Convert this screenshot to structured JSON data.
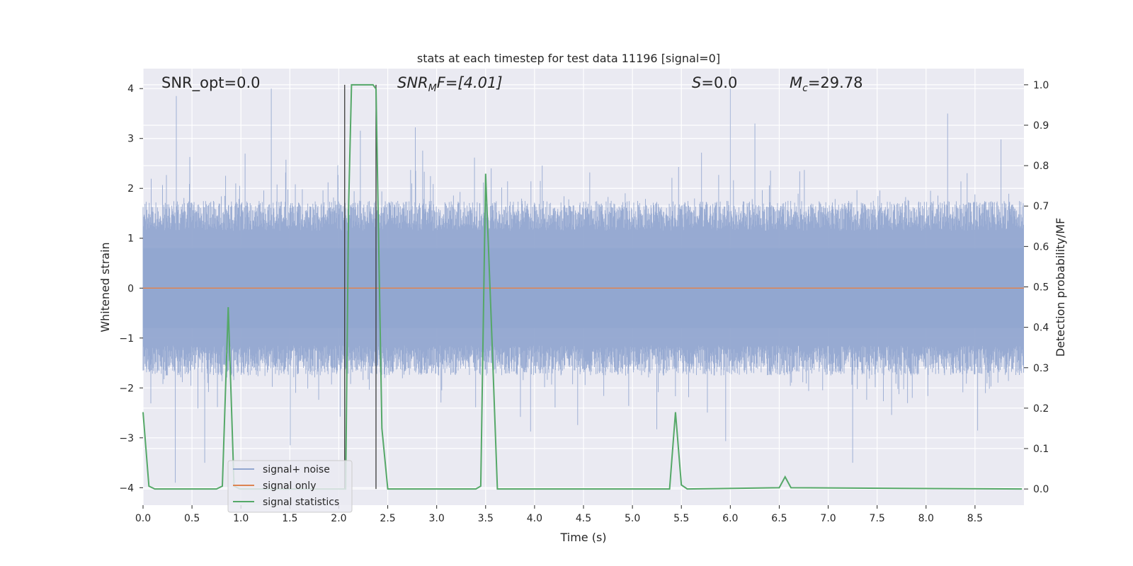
{
  "chart_data": {
    "type": "line",
    "title": "stats at each timestep for test data 11196 [signal=0]",
    "xlabel": "Time (s)",
    "ylabel": "Whitened strain",
    "y2label": "Detection probability/MF",
    "xlim": [
      0.0,
      9.0
    ],
    "ylim": [
      -4.35,
      4.4
    ],
    "y2lim": [
      -0.04,
      1.04
    ],
    "xticks": [
      "0.0",
      "0.5",
      "1.0",
      "1.5",
      "2.0",
      "2.5",
      "3.0",
      "3.5",
      "4.0",
      "4.5",
      "5.0",
      "5.5",
      "6.0",
      "6.5",
      "7.0",
      "7.5",
      "8.0",
      "8.5"
    ],
    "yticks": [
      "4",
      "3",
      "2",
      "1",
      "0",
      "−1",
      "−2",
      "−3",
      "−4"
    ],
    "y2ticks": [
      "1.0",
      "0.9",
      "0.8",
      "0.7",
      "0.6",
      "0.5",
      "0.4",
      "0.3",
      "0.2",
      "0.1",
      "0.0"
    ],
    "grid": true,
    "legend_position": "lower-left",
    "annotations": {
      "snr_opt": "SNR_opt=0.0",
      "snr_mf_sym": "SNR",
      "snr_mf_sub": "M",
      "snr_mf_rest": "F=[4.01]",
      "s_sym": "S",
      "s_rest": "=0.0",
      "mc_sym": "M",
      "mc_sub": "c",
      "mc_rest": "=29.78"
    },
    "vlines": [
      2.06,
      2.38
    ],
    "noise": {
      "band": [
        -0.8,
        0.8
      ],
      "extreme_high": [
        [
          0.34,
          3.85
        ],
        [
          1.31,
          4.0
        ],
        [
          6.0,
          4.0
        ],
        [
          8.22,
          3.5
        ]
      ],
      "extreme_low": [
        [
          0.33,
          -3.9
        ],
        [
          0.63,
          -3.5
        ],
        [
          7.25,
          -3.5
        ]
      ]
    },
    "series": [
      {
        "name": "signal+ noise",
        "color": "#92a6d0"
      },
      {
        "name": "signal only",
        "color": "#dd8452",
        "values": 0
      },
      {
        "name": "signal statistics",
        "color": "#55a868",
        "x": [
          0.0,
          0.06,
          0.12,
          0.2,
          0.75,
          0.81,
          0.87,
          0.93,
          0.99,
          1.05,
          2.05,
          2.07,
          2.1,
          2.13,
          2.2,
          2.35,
          2.38,
          2.44,
          2.5,
          3.4,
          3.45,
          3.5,
          3.56,
          3.62,
          3.68,
          5.38,
          5.44,
          5.5,
          5.56,
          6.5,
          6.56,
          6.62,
          8.98
        ],
        "values": [
          0.19,
          0.007,
          0.0,
          0.0,
          0.0,
          0.007,
          0.45,
          0.007,
          0.0,
          0.0,
          0.0,
          0.0,
          0.7,
          1.0,
          1.0,
          1.0,
          0.99,
          0.15,
          0.0,
          0.0,
          0.007,
          0.78,
          0.4,
          0.0,
          0.0,
          0.0,
          0.19,
          0.01,
          0.0,
          0.003,
          0.03,
          0.003,
          0.0
        ]
      }
    ]
  }
}
